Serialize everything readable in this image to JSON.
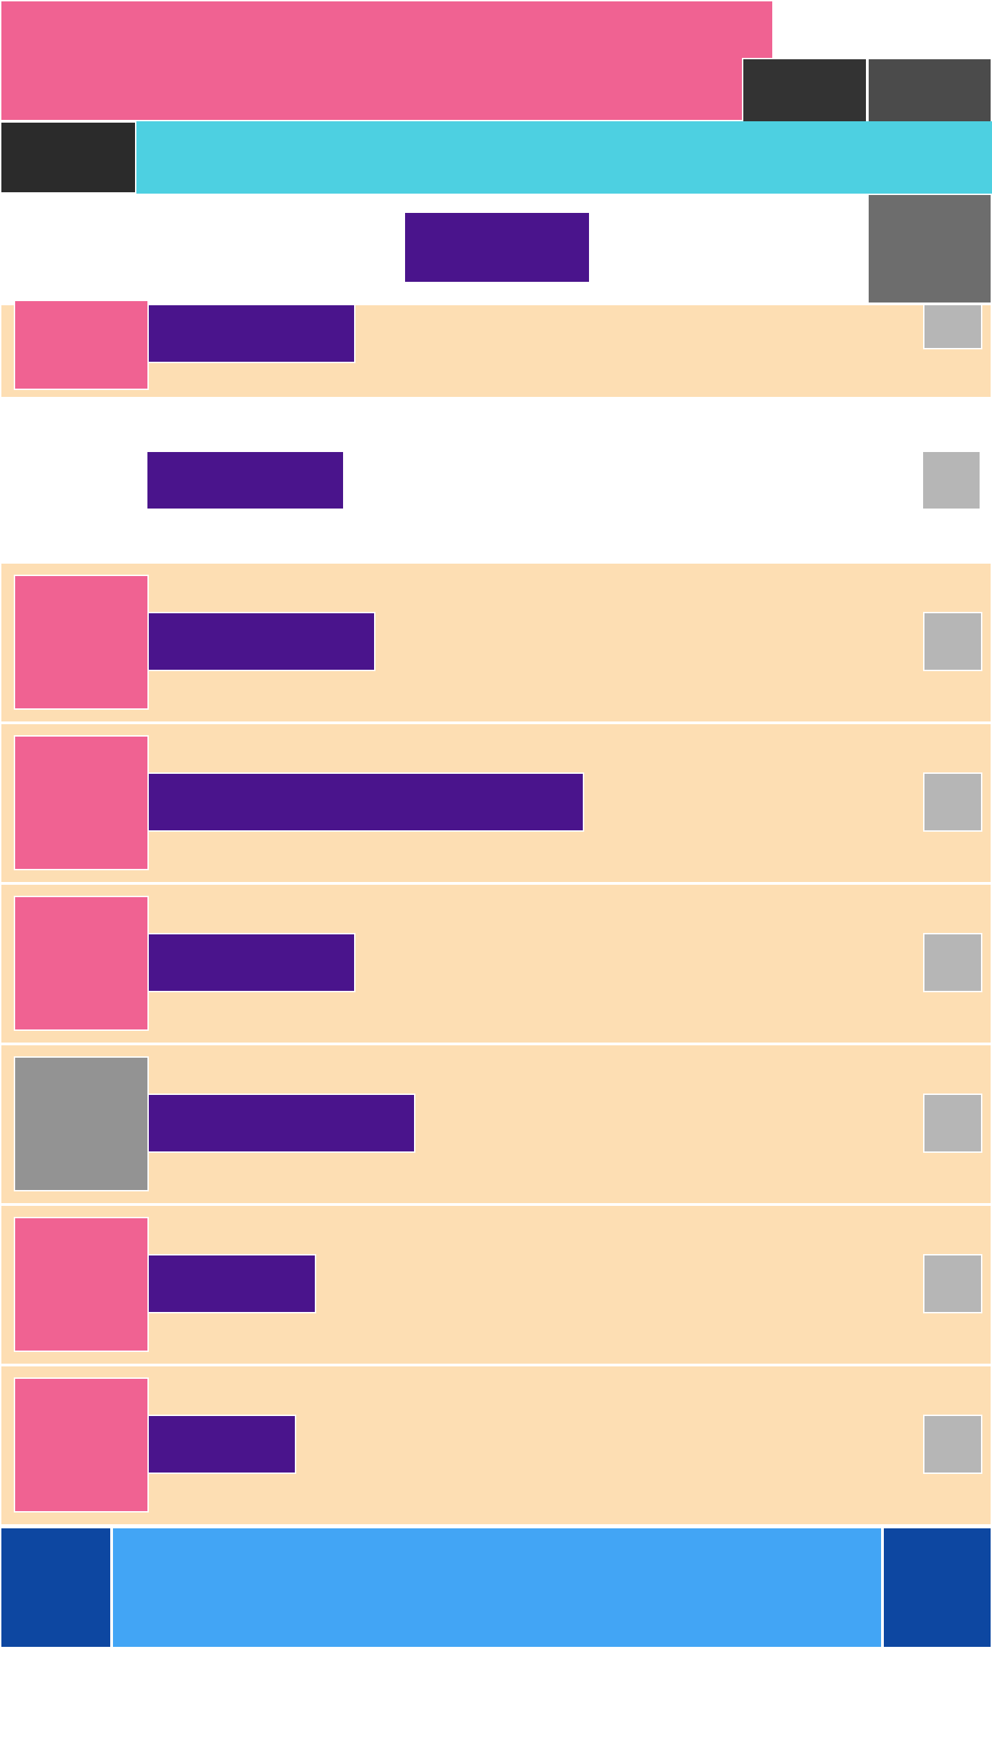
{
  "colors": {
    "background": "#ffffff",
    "accent_pink": "#f06292",
    "dark": "#333333",
    "dark_alt": "#4b4b4b",
    "darker": "#2b2b2b",
    "cyan": "#4dd0e1",
    "purple": "#4a148c",
    "gray_mid": "#6d6d6d",
    "row_bg": "#fddeb3",
    "check_gray": "#b6b6b6",
    "thumb_gray": "#939393",
    "blue_dark": "#0d47a1",
    "blue_light": "#42a5f5"
  },
  "header": {
    "banner": "",
    "tab": "",
    "title": ""
  },
  "list": {
    "items": [
      {
        "label": "",
        "bar_fraction": 0.21,
        "thumb_style": "pink"
      },
      {
        "label": "",
        "bar_fraction": 0.2,
        "thumb_style": "none"
      },
      {
        "label": "",
        "bar_fraction": 0.23,
        "thumb_style": "pink"
      },
      {
        "label": "",
        "bar_fraction": 0.44,
        "thumb_style": "pink"
      },
      {
        "label": "",
        "bar_fraction": 0.21,
        "thumb_style": "pink"
      },
      {
        "label": "",
        "bar_fraction": 0.27,
        "thumb_style": "gray"
      },
      {
        "label": "",
        "bar_fraction": 0.17,
        "thumb_style": "pink"
      },
      {
        "label": "",
        "bar_fraction": 0.15,
        "thumb_style": "pink"
      }
    ]
  },
  "footer": {
    "left": "",
    "middle": "",
    "right": ""
  }
}
